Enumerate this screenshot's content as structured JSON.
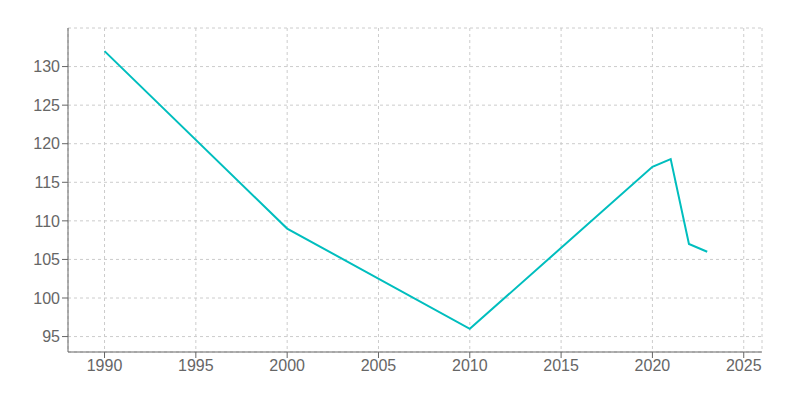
{
  "chart_data": {
    "type": "line",
    "x": [
      1990,
      2000,
      2010,
      2020,
      2021,
      2022,
      2023
    ],
    "values": [
      132,
      109,
      96,
      117,
      118,
      107,
      106
    ],
    "color": "#00BEBE",
    "xlim": [
      1988,
      2026
    ],
    "ylim": [
      93,
      135
    ],
    "xticks": [
      1990,
      1995,
      2000,
      2005,
      2010,
      2015,
      2020,
      2025
    ],
    "yticks": [
      95,
      100,
      105,
      110,
      115,
      120,
      125,
      130
    ],
    "grid": true
  }
}
